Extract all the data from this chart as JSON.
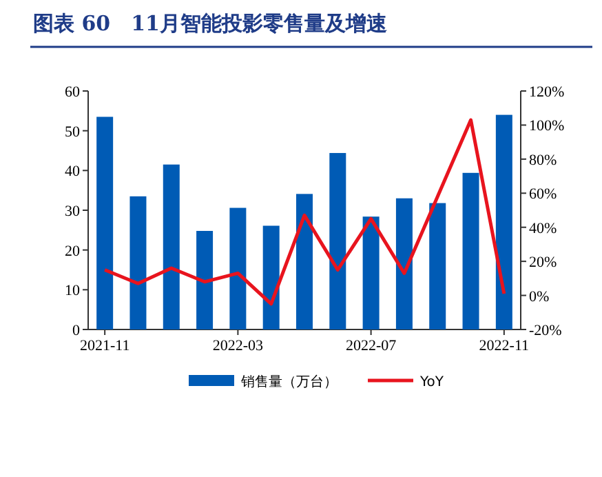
{
  "chart_data": {
    "type": "bar",
    "title": "图表 60　11月智能投影零售量及增速",
    "categories": [
      "2021-11",
      null,
      null,
      null,
      "2022-03",
      null,
      null,
      null,
      "2022-07",
      null,
      null,
      null,
      "2022-11"
    ],
    "series": [
      {
        "name": "销售量（万台）",
        "color": "#005bb5",
        "values": [
          53.5,
          33.5,
          41.5,
          24.8,
          30.6,
          26.1,
          34.1,
          44.4,
          28.4,
          33.0,
          31.8,
          39.4,
          54.0
        ]
      },
      {
        "name": "YoY",
        "type": "line",
        "axis": "y2",
        "color": "#e8141e",
        "values": [
          15,
          7,
          16,
          8,
          13,
          -5,
          47,
          15,
          45,
          13,
          58,
          103,
          1
        ]
      }
    ],
    "ylim": [
      0,
      60
    ],
    "yticks": [
      0,
      10,
      20,
      30,
      40,
      50,
      60
    ],
    "y2lim": [
      -20,
      120
    ],
    "y2ticks": [
      {
        "value": -20,
        "label": "-20%"
      },
      {
        "value": 0,
        "label": "0%"
      },
      {
        "value": 20,
        "label": "20%"
      },
      {
        "value": 40,
        "label": "40%"
      },
      {
        "value": 60,
        "label": "60%"
      },
      {
        "value": 80,
        "label": "80%"
      },
      {
        "value": 100,
        "label": "100%"
      },
      {
        "value": 120,
        "label": "120%"
      }
    ],
    "grid": false,
    "legend": "bottom",
    "marker": "none",
    "line_style": "solid"
  }
}
